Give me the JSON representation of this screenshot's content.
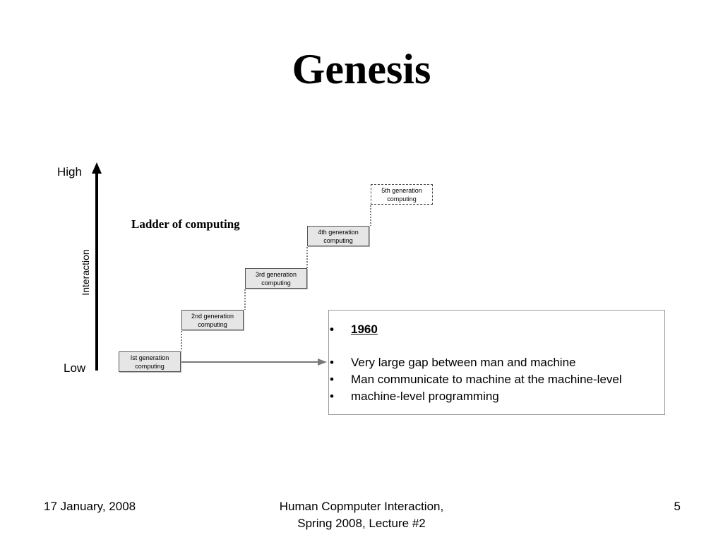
{
  "slide": {
    "title": "Genesis"
  },
  "diagram": {
    "axis_high": "High",
    "axis_low": "Low",
    "axis_title": "Interaction",
    "ladder_title": "Ladder of computing",
    "generations": [
      {
        "line1": "Ist  generation",
        "line2": "computing"
      },
      {
        "line1": "2nd generation",
        "line2": "computing"
      },
      {
        "line1": "3rd  generation",
        "line2": "computing"
      },
      {
        "line1": "4th  generation",
        "line2": "computing"
      },
      {
        "line1": "5th generation",
        "line2": "computing"
      }
    ],
    "info": {
      "heading": "1960",
      "bullets": [
        "Very large gap between man and machine",
        "Man communicate to machine at the machine-level",
        "machine-level programming"
      ]
    }
  },
  "footer": {
    "date": "17 January, 2008",
    "course_line1": "Human Copmputer Interaction,",
    "course_line2": "Spring 2008, Lecture #2",
    "page": "5"
  }
}
